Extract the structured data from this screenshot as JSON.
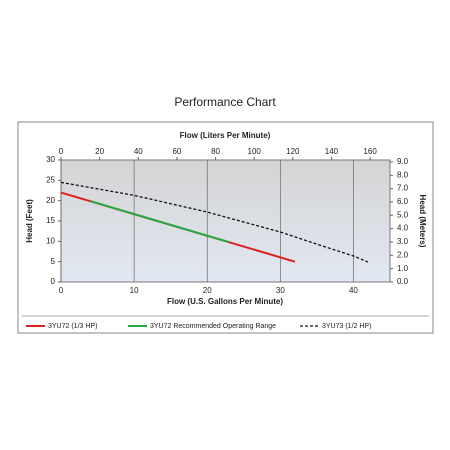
{
  "chart_data": {
    "type": "line",
    "title": "Performance Chart",
    "x_label": "Flow (U.S. Gallons Per Minute)",
    "x2_label": "Flow (Liters Per Minute)",
    "y_label": "Head (Feet)",
    "y2_label": "Head (Meters)",
    "xlim": [
      0,
      45
    ],
    "xticks": [
      0,
      10,
      20,
      30,
      40
    ],
    "x2lim": [
      0,
      170.3
    ],
    "x2ticks": [
      0,
      20,
      40,
      60,
      80,
      100,
      120,
      140,
      160
    ],
    "ylim": [
      0,
      30
    ],
    "yticks": [
      0,
      5,
      10,
      15,
      20,
      25,
      30
    ],
    "y2lim": [
      0,
      9.144
    ],
    "y2ticks": [
      {
        "value": 0,
        "label": "0.0"
      },
      {
        "value": 1,
        "label": "1.0"
      },
      {
        "value": 2,
        "label": "2.0"
      },
      {
        "value": 3,
        "label": "3.0"
      },
      {
        "value": 4,
        "label": "4.0"
      },
      {
        "value": 5,
        "label": "5.0"
      },
      {
        "value": 6,
        "label": "6.0"
      },
      {
        "value": 7,
        "label": "7.0"
      },
      {
        "value": 8,
        "label": "8.0"
      },
      {
        "value": 9,
        "label": "9.0"
      }
    ],
    "grid": true,
    "series": [
      {
        "name": "3YU72 (1/3 HP)",
        "color": "#e02020",
        "dash": false,
        "x": [
          0,
          32
        ],
        "values": [
          22,
          5
        ]
      },
      {
        "name": "3YU72 Recommended Operating Range",
        "color": "#22aa44",
        "dash": false,
        "x": [
          4,
          23
        ],
        "values": [
          19.9,
          9.8
        ]
      },
      {
        "name": "3YU73 (1/2 HP)",
        "color": "#111111",
        "dash": true,
        "x": [
          0,
          10,
          20,
          30,
          35,
          40,
          42
        ],
        "values": [
          24.5,
          21.3,
          17.2,
          12.3,
          9.3,
          6.4,
          4.9
        ]
      }
    ]
  }
}
